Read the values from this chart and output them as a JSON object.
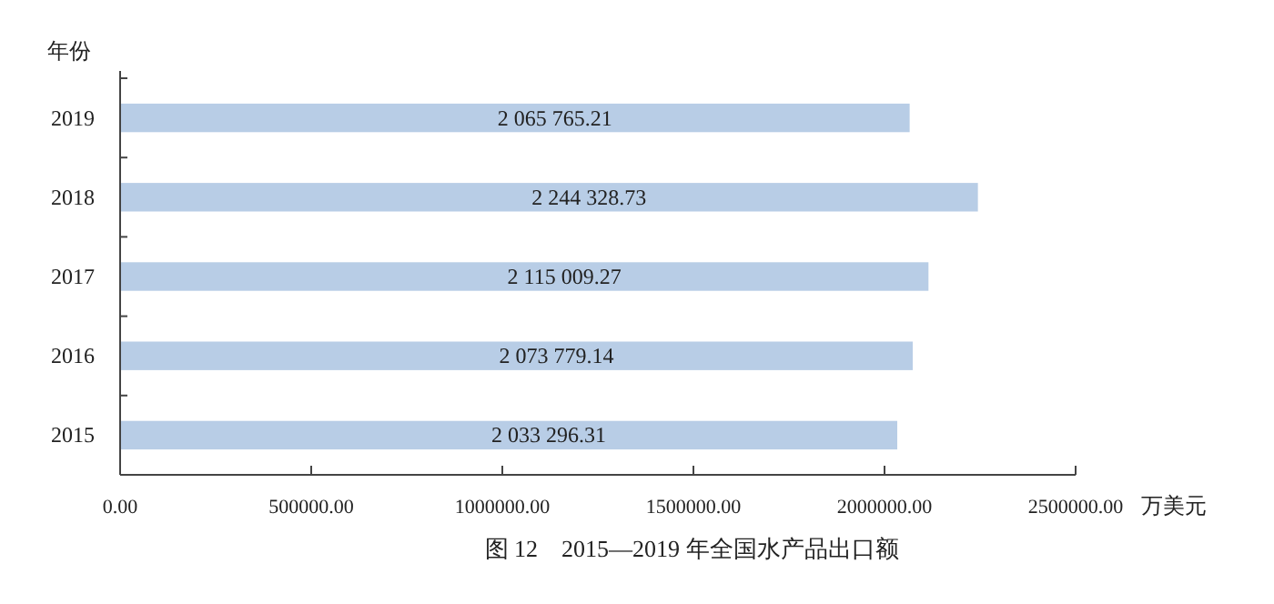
{
  "chart_data": {
    "type": "bar",
    "orientation": "horizontal",
    "title": "图 12　2015—2019 年全国水产品出口额",
    "xlabel": "万美元",
    "ylabel": "年份",
    "categories": [
      "2019",
      "2018",
      "2017",
      "2016",
      "2015"
    ],
    "values": [
      2065765.21,
      2244328.73,
      2115009.27,
      2073779.14,
      2033296.31
    ],
    "value_labels": [
      "2 065 765.21",
      "2 244 328.73",
      "2 115 009.27",
      "2 073 779.14",
      "2 033 296.31"
    ],
    "color": "#b8cde6",
    "xlim": [
      0,
      2500000
    ],
    "xticks": [
      {
        "value": 0,
        "label": "0.00"
      },
      {
        "value": 500000,
        "label": "500000.00"
      },
      {
        "value": 1000000,
        "label": "1000000.00"
      },
      {
        "value": 1500000,
        "label": "1500000.00"
      },
      {
        "value": 2000000,
        "label": "2000000.00"
      },
      {
        "value": 2500000,
        "label": "2500000.00"
      }
    ],
    "grid": false
  }
}
